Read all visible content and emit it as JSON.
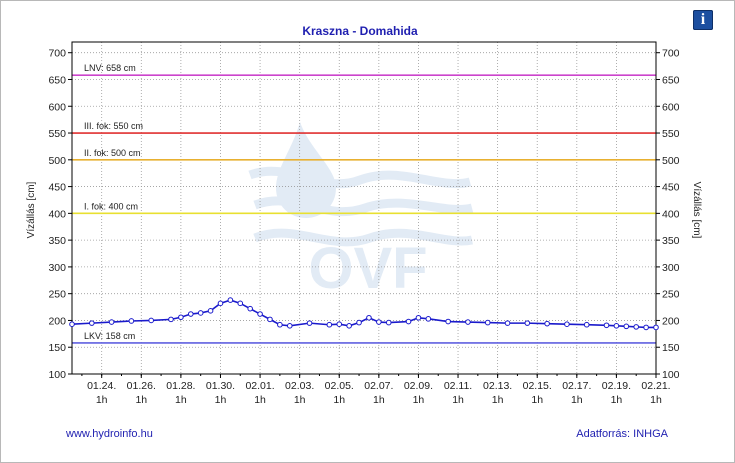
{
  "chart_data": {
    "type": "line",
    "title": "Kraszna - Domahida",
    "ylabel": "Vízállás [cm]",
    "ylim": [
      100,
      720
    ],
    "yticks": [
      100,
      150,
      200,
      250,
      300,
      350,
      400,
      450,
      500,
      550,
      600,
      650,
      700
    ],
    "xlim": [
      "01.22. 13h",
      "02.21. 1h"
    ],
    "xticks": [
      {
        "date": "01.24.",
        "hour": "1h"
      },
      {
        "date": "01.26.",
        "hour": "1h"
      },
      {
        "date": "01.28.",
        "hour": "1h"
      },
      {
        "date": "01.30.",
        "hour": "1h"
      },
      {
        "date": "02.01.",
        "hour": "1h"
      },
      {
        "date": "02.03.",
        "hour": "1h"
      },
      {
        "date": "02.05.",
        "hour": "1h"
      },
      {
        "date": "02.07.",
        "hour": "1h"
      },
      {
        "date": "02.09.",
        "hour": "1h"
      },
      {
        "date": "02.11.",
        "hour": "1h"
      },
      {
        "date": "02.13.",
        "hour": "1h"
      },
      {
        "date": "02.15.",
        "hour": "1h"
      },
      {
        "date": "02.17.",
        "hour": "1h"
      },
      {
        "date": "02.19.",
        "hour": "1h"
      },
      {
        "date": "02.21.",
        "hour": "1h"
      }
    ],
    "grid": true,
    "series": [
      {
        "color": "#1a1acc",
        "x": [
          "01.22. 13h",
          "01.23. 13h",
          "01.24. 13h",
          "01.25. 13h",
          "01.26. 13h",
          "01.27. 13h",
          "01.28. 1h",
          "01.28. 13h",
          "01.29. 1h",
          "01.29. 13h",
          "01.30. 1h",
          "01.30. 13h",
          "01.31. 1h",
          "01.31. 13h",
          "02.01. 1h",
          "02.01. 13h",
          "02.02. 1h",
          "02.02. 13h",
          "02.03. 13h",
          "02.04. 13h",
          "02.05. 1h",
          "02.05. 13h",
          "02.06. 1h",
          "02.06. 13h",
          "02.07. 1h",
          "02.07. 13h",
          "02.08. 13h",
          "02.09. 1h",
          "02.09. 13h",
          "02.10. 13h",
          "02.11. 13h",
          "02.12. 13h",
          "02.13. 13h",
          "02.14. 13h",
          "02.15. 13h",
          "02.16. 13h",
          "02.17. 13h",
          "02.18. 13h",
          "02.19. 1h",
          "02.19. 13h",
          "02.20. 1h",
          "02.20. 13h",
          "02.21. 1h"
        ],
        "values": [
          193,
          195,
          197,
          199,
          200,
          202,
          206,
          212,
          214,
          218,
          232,
          238,
          232,
          222,
          212,
          202,
          192,
          190,
          195,
          192,
          193,
          190,
          196,
          205,
          197,
          196,
          198,
          205,
          203,
          198,
          197,
          196,
          195,
          195,
          194,
          193,
          192,
          191,
          190,
          189,
          188,
          187,
          187
        ]
      }
    ],
    "reference_lines": [
      {
        "label": "LNV: 658 cm",
        "value": 658,
        "color": "#cc44cc"
      },
      {
        "label": "III. fok: 550 cm",
        "value": 550,
        "color": "#e03030"
      },
      {
        "label": "II. fok: 500 cm",
        "value": 500,
        "color": "#e8b030"
      },
      {
        "label": "I. fok: 400 cm",
        "value": 400,
        "color": "#e8e030"
      },
      {
        "label": "LKV: 158 cm",
        "value": 158,
        "color": "#6060e0"
      }
    ],
    "watermark": "OVF"
  },
  "footer": {
    "left": "www.hydroinfo.hu",
    "right": "Adatforrás: INHGA"
  },
  "info_button": {
    "label": "i"
  }
}
